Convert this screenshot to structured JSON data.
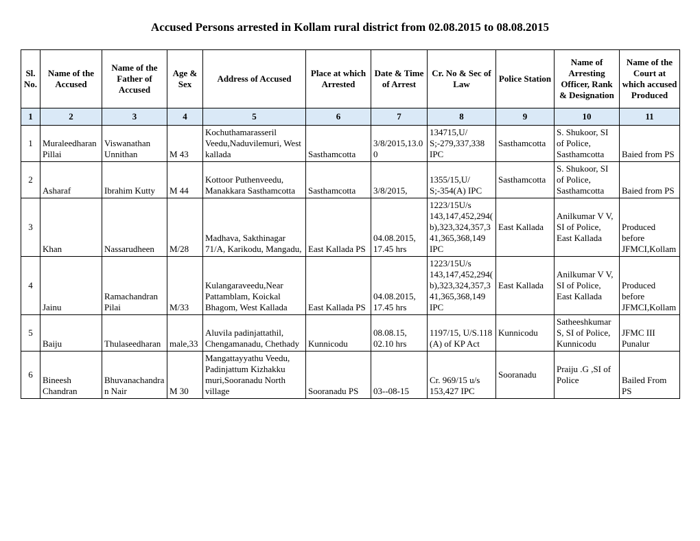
{
  "title": "Accused Persons arrested in  Kollam rural  district from  02.08.2015 to 08.08.2015",
  "headers": {
    "c1": "Sl. No.",
    "c2": "Name of the Accused",
    "c3": "Name of the Father of Accused",
    "c4": "Age & Sex",
    "c5": "Address of Accused",
    "c6": "Place at which Arrested",
    "c7": "Date & Time of Arrest",
    "c8": "Cr. No & Sec of Law",
    "c9": "Police Station",
    "c10": "Name of Arresting Officer, Rank & Designation",
    "c11": "Name of the Court at which accused Produced"
  },
  "numrow": [
    "1",
    "2",
    "3",
    "4",
    "5",
    "6",
    "7",
    "8",
    "9",
    "10",
    "11"
  ],
  "rows": [
    {
      "sl": "1",
      "name": "Muraleedharan Pillai",
      "father": "Viswanathan Unnithan",
      "agesex": "M 43",
      "address": "Kochuthamarasseril Veedu,Naduvilemuri, West kallada",
      "place": "Sasthamcotta",
      "datetime": "3/8/2015,13.00",
      "crno": "134715,U/ S;-279,337,338 IPC",
      "ps": "Sasthamcotta",
      "officer": "S. Shukoor, SI of Police, Sasthamcotta",
      "court": "Baied from PS"
    },
    {
      "sl": "2",
      "name": "Asharaf",
      "father": "Ibrahim Kutty",
      "agesex": "M 44",
      "address": "Kottoor Puthenveedu, Manakkara Sasthamcotta",
      "place": "Sasthamcotta",
      "datetime": "3/8/2015,",
      "crno": "1355/15,U/ S;-354(A) IPC",
      "ps": "Sasthamcotta",
      "officer": "S. Shukoor, SI of Police, Sasthamcotta",
      "court": "Baied from PS"
    },
    {
      "sl": "3",
      "name": "Khan",
      "father": "Nassarudheen",
      "agesex": "M/28",
      "address": "Madhava, Sakthinagar 71/A, Karikodu, Mangadu,",
      "place": "East Kallada PS",
      "datetime": "04.08.2015, 17.45 hrs",
      "crno": "1223/15U/s 143,147,452,294(b),323,324,357,341,365,368,149 IPC",
      "ps": "East Kallada",
      "officer": "Anilkumar V V, SI of Police, East Kallada",
      "court": "Produced before JFMCI,Kollam"
    },
    {
      "sl": "4",
      "name": "Jainu",
      "father": "Ramachandran Pilai",
      "agesex": "M/33",
      "address": "Kulangaraveedu,Near Pattamblam, Koickal Bhagom, West Kallada",
      "place": "East Kallada PS",
      "datetime": "04.08.2015, 17.45 hrs",
      "crno": "1223/15U/s 143,147,452,294(b),323,324,357,341,365,368,149 IPC",
      "ps": "East Kallada",
      "officer": "Anilkumar V V, SI of Police, East Kallada",
      "court": "Produced before JFMCI,Kollam"
    },
    {
      "sl": "5",
      "name": "Baiju",
      "father": "Thulaseedharan",
      "agesex": "male,33",
      "address": "Aluvila padinjattathil, Chengamanadu, Chethady",
      "place": "Kunnicodu",
      "datetime": "08.08.15, 02.10 hrs",
      "crno": "1197/15, U/S.118 (A) of KP Act",
      "ps": "Kunnicodu",
      "officer": "Satheeshkumar S, SI of Police, Kunnicodu",
      "court": "JFMC III Punalur"
    },
    {
      "sl": "6",
      "name": "Bineesh Chandran",
      "father": "Bhuvanachandran Nair",
      "agesex": "M 30",
      "address": "Mangattayyathu Veedu, Padinjattum Kizhakku muri,Sooranadu North village",
      "place": "Sooranadu PS",
      "datetime": "03--08-15",
      "crno": "Cr. 969/15 u/s 153,427   IPC",
      "ps": "Sooranadu",
      "officer": "Praiju .G ,SI of Police",
      "court": "Bailed From PS"
    }
  ]
}
